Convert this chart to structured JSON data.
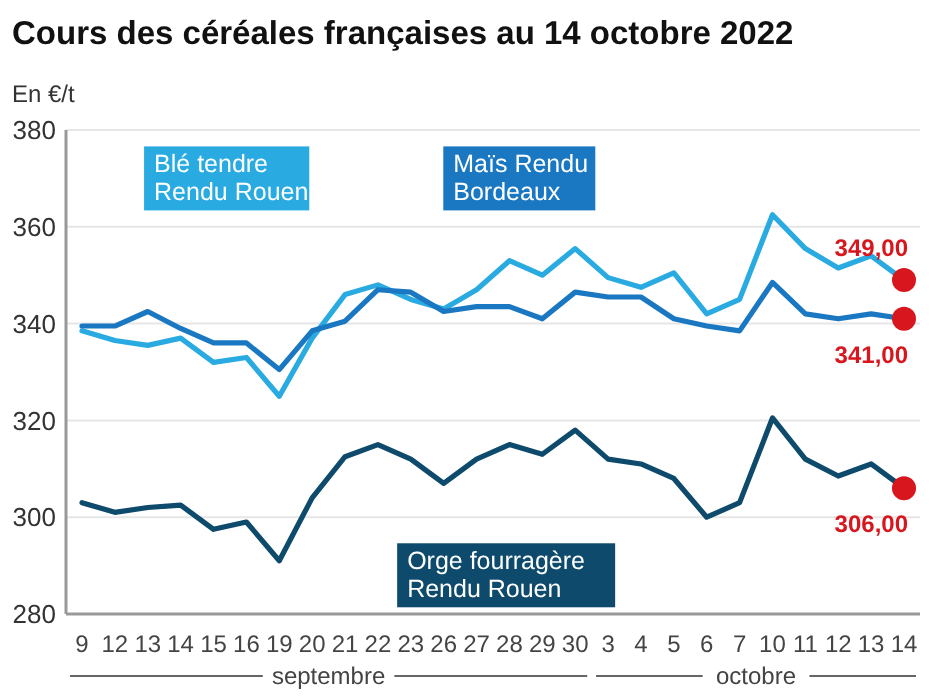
{
  "chart_data": {
    "type": "line",
    "title": "Cours des céréales françaises au 14 octobre 2022",
    "ylabel": "En €/t",
    "categories": [
      "9",
      "12",
      "13",
      "14",
      "15",
      "16",
      "19",
      "20",
      "21",
      "22",
      "23",
      "26",
      "27",
      "28",
      "29",
      "30",
      "3",
      "4",
      "5",
      "6",
      "7",
      "10",
      "11",
      "12",
      "13",
      "14"
    ],
    "series": [
      {
        "name": "Blé tendre Rendu Rouen",
        "color": "#29abe2",
        "values": [
          338.5,
          336.5,
          335.5,
          337,
          332,
          333,
          325,
          337,
          346,
          348,
          345,
          343,
          347,
          353,
          350,
          355.5,
          349.5,
          347.5,
          350.5,
          342,
          345,
          362.5,
          355.5,
          351.5,
          354,
          349
        ],
        "value_labels": [
          null,
          null,
          null,
          null,
          null,
          null,
          null,
          null,
          null,
          null,
          null,
          null,
          null,
          null,
          null,
          null,
          null,
          null,
          null,
          null,
          null,
          null,
          null,
          null,
          null,
          "349,00"
        ]
      },
      {
        "name": "Maïs Rendu Bordeaux",
        "color": "#1a78c2",
        "values": [
          339.5,
          339.5,
          342.5,
          339,
          336,
          336,
          330.5,
          338.5,
          340.5,
          347,
          346.5,
          342.5,
          343.5,
          343.5,
          341,
          346.5,
          345.5,
          345.5,
          341,
          339.5,
          338.5,
          348.5,
          342,
          341,
          342,
          341
        ],
        "value_labels": [
          null,
          null,
          null,
          null,
          null,
          null,
          null,
          null,
          null,
          null,
          null,
          null,
          null,
          null,
          null,
          null,
          null,
          null,
          null,
          null,
          null,
          null,
          null,
          null,
          null,
          "341,00"
        ]
      },
      {
        "name": "Orge fourragère Rendu Rouen",
        "color": "#0d4a6b",
        "values": [
          303,
          301,
          302,
          302.5,
          297.5,
          299,
          291,
          304,
          312.5,
          315,
          312,
          307,
          312,
          315,
          313,
          318,
          312,
          311,
          308,
          300,
          303,
          320.5,
          312,
          308.5,
          311,
          306
        ],
        "value_labels": [
          null,
          null,
          null,
          null,
          null,
          null,
          null,
          null,
          null,
          null,
          null,
          null,
          null,
          null,
          null,
          null,
          null,
          null,
          null,
          null,
          null,
          null,
          null,
          null,
          null,
          "306,00"
        ]
      }
    ],
    "ylim": [
      280,
      380
    ],
    "yticks": [
      280,
      300,
      320,
      340,
      360,
      380
    ],
    "grid": "y",
    "legend": false,
    "marker": "none",
    "line_style": "solid",
    "annotations": [
      "septembre",
      "octobre"
    ]
  }
}
